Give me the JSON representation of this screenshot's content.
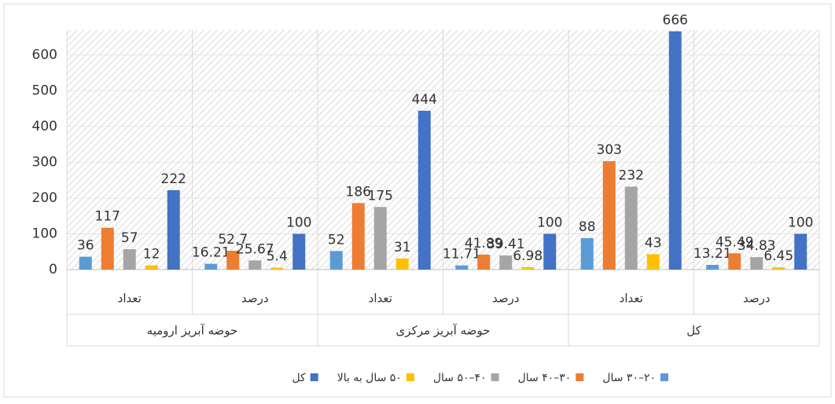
{
  "chart_data": {
    "type": "bar",
    "categories": [
      "تعداد",
      "درصد",
      "تعداد",
      "درصد",
      "تعداد",
      "درصد"
    ],
    "groups": [
      "حوضه آبریز ارومیه",
      "حوضه آبریز مرکزی",
      "کل"
    ],
    "series": [
      {
        "name": "۲۰–۳۰ سال",
        "color": "#5b9bd5",
        "values": [
          36,
          16.21,
          52,
          11.71,
          88,
          13.21
        ]
      },
      {
        "name": "۳۰–۴۰ سال",
        "color": "#ed7d31",
        "values": [
          117,
          52.7,
          186,
          41.89,
          303,
          45.49
        ]
      },
      {
        "name": "۴۰–۵۰ سال",
        "color": "#a5a5a5",
        "values": [
          57,
          25.67,
          175,
          39.41,
          232,
          34.83
        ]
      },
      {
        "name": "۵۰ سال به بالا",
        "color": "#ffc000",
        "values": [
          12,
          5.4,
          31,
          6.98,
          43,
          6.45
        ]
      },
      {
        "name": "کل",
        "color": "#4472c4",
        "values": [
          222,
          100,
          444,
          100,
          666,
          100
        ]
      }
    ],
    "ylim": [
      0,
      670
    ],
    "yticks": [
      0,
      100,
      200,
      300,
      400,
      500,
      600
    ],
    "grid": true,
    "legend": "bottom"
  }
}
